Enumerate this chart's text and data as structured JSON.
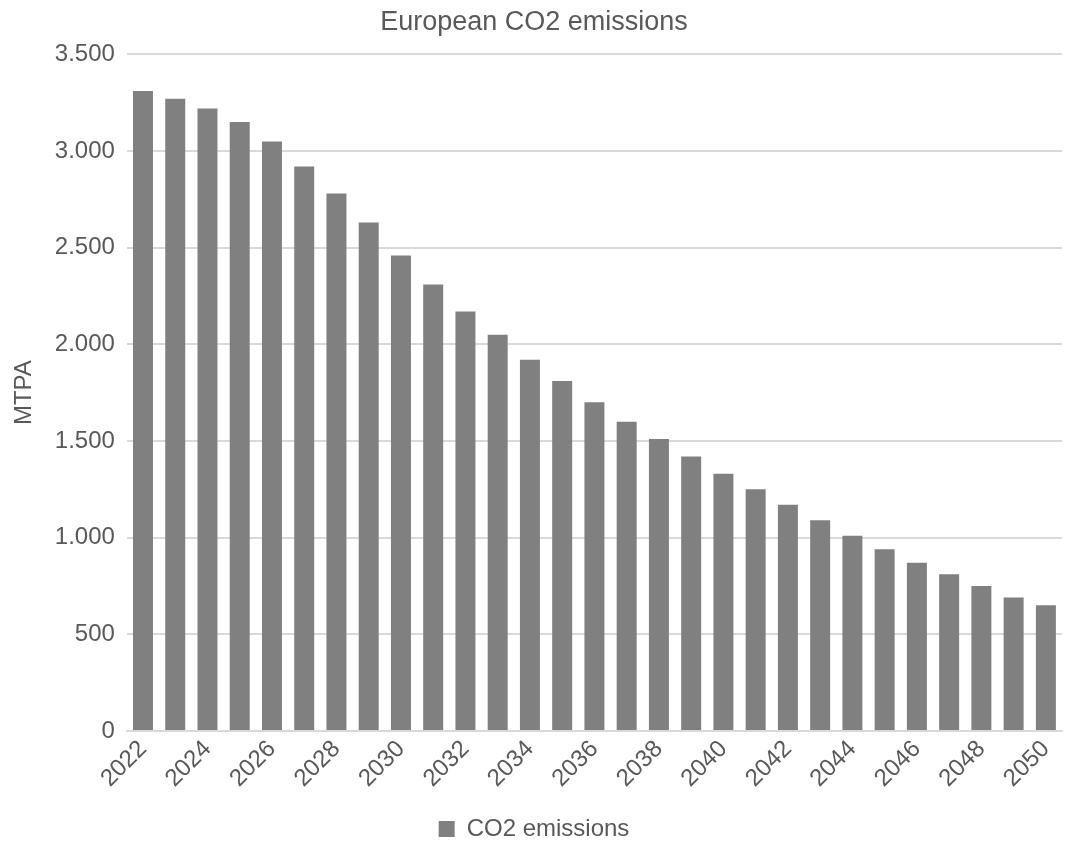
{
  "chart_data": {
    "type": "bar",
    "title": "European CO2 emissions",
    "ylabel": "MTPA",
    "categories": [
      "2022",
      null,
      "2024",
      null,
      "2026",
      null,
      "2028",
      null,
      "2030",
      null,
      "2032",
      null,
      "2034",
      null,
      "2036",
      null,
      "2038",
      null,
      "2040",
      null,
      "2042",
      null,
      "2044",
      null,
      "2046",
      null,
      "2048",
      null,
      "2050"
    ],
    "series": [
      {
        "name": "CO2 emissions",
        "color": "#808080",
        "values": [
          3310,
          3270,
          3220,
          3150,
          3050,
          2920,
          2780,
          2630,
          2460,
          2310,
          2170,
          2050,
          1920,
          1810,
          1700,
          1600,
          1510,
          1420,
          1330,
          1250,
          1170,
          1090,
          1010,
          940,
          870,
          810,
          750,
          690,
          650
        ]
      }
    ],
    "ylim": [
      0,
      3500
    ],
    "yticks": [
      0,
      {
        "value": 500,
        "label": "500"
      },
      {
        "value": 1000,
        "label": "1.000"
      },
      {
        "value": 1500,
        "label": "1.500"
      },
      {
        "value": 2000,
        "label": "2.000"
      },
      {
        "value": 2500,
        "label": "2.500"
      },
      {
        "value": 3000,
        "label": "3.000"
      },
      {
        "value": 3500,
        "label": "3.500"
      }
    ],
    "grid": "y",
    "legend": "bottom"
  }
}
